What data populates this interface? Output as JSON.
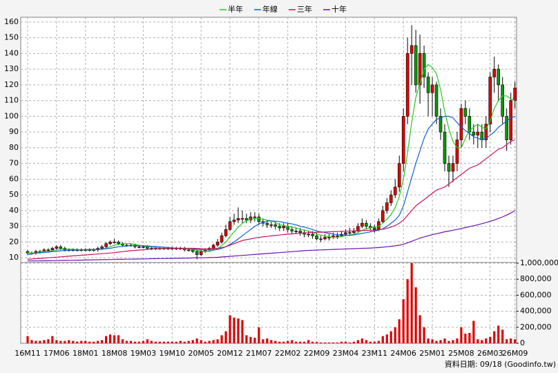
{
  "chart_data": {
    "type": "candlestick",
    "categories": [
      "16M11",
      null,
      null,
      null,
      null,
      null,
      null,
      "17M06",
      null,
      null,
      null,
      null,
      null,
      null,
      "18M01",
      null,
      null,
      null,
      null,
      null,
      null,
      "18M08",
      null,
      null,
      null,
      null,
      null,
      null,
      "19M03",
      null,
      null,
      null,
      null,
      null,
      null,
      "19M10",
      null,
      null,
      null,
      null,
      null,
      null,
      "20M05",
      null,
      null,
      null,
      null,
      null,
      null,
      "20M12",
      null,
      null,
      null,
      null,
      null,
      null,
      "21M07",
      null,
      null,
      null,
      null,
      null,
      null,
      "22M02",
      null,
      null,
      null,
      null,
      null,
      null,
      "22M09",
      null,
      null,
      null,
      null,
      null,
      null,
      "23M04",
      null,
      null,
      null,
      null,
      null,
      null,
      "23M11",
      null,
      null,
      null,
      null,
      null,
      null,
      "24M06",
      null,
      null,
      null,
      null,
      null,
      null,
      "25M01",
      null,
      null,
      null,
      null,
      null,
      null,
      "25M08",
      null,
      null,
      null,
      null,
      null,
      null,
      "26M03",
      null,
      null,
      null,
      null,
      null,
      "26M09"
    ],
    "open": [
      14,
      13,
      13,
      14,
      14,
      15,
      15,
      16,
      17,
      16,
      15,
      15,
      15,
      15,
      15,
      15,
      15,
      15,
      16,
      17,
      19,
      20,
      20,
      19,
      18,
      18,
      18,
      17,
      17,
      17,
      16,
      16,
      16,
      16,
      16,
      16,
      16,
      16,
      16,
      15,
      15,
      14,
      12,
      14,
      15,
      16,
      18,
      20,
      24,
      28,
      33,
      34,
      35,
      35,
      34,
      36,
      36,
      33,
      32,
      31,
      31,
      30,
      29,
      30,
      28,
      27,
      27,
      26,
      25,
      25,
      24,
      22,
      22,
      23,
      23,
      24,
      24,
      25,
      26,
      26,
      27,
      30,
      32,
      30,
      29,
      28,
      33,
      40,
      45,
      50,
      55,
      70,
      100,
      140,
      145,
      120,
      140,
      125,
      115,
      120,
      100,
      90,
      70,
      65,
      70,
      85,
      105,
      100,
      90,
      88,
      90,
      85,
      95,
      125,
      130,
      120,
      100,
      85,
      110
    ],
    "high": [
      15,
      14,
      15,
      15,
      16,
      16,
      17,
      18,
      18,
      17,
      16,
      16,
      16,
      16,
      16,
      16,
      16,
      17,
      18,
      20,
      21,
      22,
      21,
      20,
      19,
      19,
      19,
      18,
      18,
      18,
      17,
      17,
      17,
      17,
      17,
      17,
      17,
      17,
      17,
      16,
      16,
      15,
      15,
      16,
      17,
      19,
      22,
      26,
      31,
      36,
      38,
      42,
      40,
      38,
      39,
      39,
      38,
      35,
      34,
      33,
      33,
      32,
      32,
      32,
      30,
      29,
      29,
      28,
      27,
      27,
      26,
      24,
      25,
      25,
      26,
      26,
      27,
      28,
      29,
      29,
      32,
      35,
      34,
      32,
      31,
      35,
      43,
      48,
      53,
      60,
      75,
      105,
      150,
      158,
      155,
      152,
      145,
      128,
      125,
      122,
      105,
      95,
      75,
      75,
      90,
      108,
      110,
      105,
      95,
      95,
      95,
      100,
      128,
      138,
      133,
      125,
      105,
      115,
      122
    ],
    "low": [
      12,
      12,
      12,
      13,
      13,
      14,
      14,
      15,
      15,
      14,
      14,
      14,
      14,
      14,
      14,
      14,
      14,
      14,
      15,
      16,
      18,
      19,
      18,
      17,
      17,
      17,
      16,
      16,
      16,
      15,
      15,
      15,
      15,
      15,
      15,
      15,
      15,
      15,
      14,
      14,
      13,
      9,
      11,
      13,
      14,
      15,
      17,
      19,
      23,
      27,
      31,
      32,
      32,
      32,
      32,
      33,
      31,
      30,
      29,
      29,
      28,
      27,
      27,
      26,
      25,
      25,
      24,
      23,
      23,
      22,
      21,
      20,
      21,
      21,
      22,
      22,
      23,
      24,
      24,
      25,
      26,
      29,
      28,
      27,
      26,
      27,
      32,
      38,
      43,
      48,
      52,
      65,
      95,
      120,
      115,
      108,
      118,
      100,
      100,
      95,
      85,
      65,
      55,
      58,
      65,
      80,
      95,
      85,
      82,
      80,
      80,
      80,
      90,
      115,
      110,
      95,
      78,
      82,
      105
    ],
    "close": [
      13,
      13,
      14,
      14,
      15,
      15,
      16,
      17,
      16,
      15,
      15,
      15,
      15,
      15,
      15,
      15,
      15,
      16,
      17,
      19,
      20,
      20,
      19,
      18,
      18,
      18,
      17,
      17,
      17,
      16,
      16,
      16,
      16,
      16,
      16,
      16,
      16,
      16,
      15,
      15,
      14,
      12,
      14,
      15,
      16,
      18,
      20,
      24,
      28,
      33,
      34,
      35,
      35,
      34,
      36,
      36,
      33,
      32,
      31,
      31,
      30,
      29,
      30,
      28,
      27,
      27,
      26,
      25,
      25,
      24,
      22,
      22,
      23,
      23,
      24,
      24,
      25,
      26,
      26,
      27,
      30,
      32,
      30,
      29,
      28,
      33,
      40,
      45,
      50,
      55,
      70,
      100,
      140,
      145,
      120,
      140,
      125,
      115,
      120,
      100,
      90,
      70,
      65,
      70,
      85,
      105,
      100,
      90,
      88,
      90,
      85,
      95,
      125,
      130,
      120,
      100,
      85,
      110,
      118
    ],
    "up_color": "#e00000",
    "down_color": "#009a00",
    "series": [
      {
        "name": "半年",
        "color": "#22cc22",
        "values": [
          13,
          13,
          13,
          13.5,
          14,
          14,
          14.5,
          15,
          15.5,
          15.5,
          15.5,
          15.5,
          15.2,
          15,
          15,
          15,
          15,
          15.2,
          15.5,
          16,
          17,
          18,
          18.5,
          19,
          19,
          19,
          18.5,
          18,
          17.5,
          17.2,
          16.8,
          16.5,
          16.3,
          16,
          16,
          16,
          16,
          16,
          15.8,
          15.7,
          15.3,
          14.7,
          14.3,
          14,
          14,
          14.8,
          15.8,
          17.8,
          20,
          23.5,
          26.5,
          29.5,
          32,
          33.5,
          34.5,
          35,
          35,
          34.5,
          34,
          33.5,
          32.5,
          31,
          30.5,
          30,
          29.5,
          29,
          28,
          27.5,
          27,
          26.3,
          25,
          24.5,
          23.8,
          23.3,
          23,
          23,
          23.5,
          24,
          24.5,
          25,
          26,
          27.5,
          28.5,
          29,
          29.5,
          30,
          32,
          34.5,
          37.5,
          42,
          49,
          60,
          77,
          96,
          112,
          121,
          130,
          133,
          131,
          127,
          117,
          103,
          92,
          84,
          80,
          80,
          86,
          91,
          93,
          95,
          93,
          92,
          97,
          105,
          110,
          113,
          113,
          111,
          110
        ]
      },
      {
        "name": "年線",
        "color": "#1060d0",
        "values": [
          12,
          12.5,
          13,
          13,
          13.5,
          13.5,
          14,
          14,
          14.5,
          14.5,
          15,
          15,
          15,
          15,
          15.2,
          15.3,
          15.3,
          15.3,
          15.5,
          15.7,
          16,
          16.5,
          17,
          17.2,
          17.5,
          17.7,
          17.8,
          17.7,
          17.6,
          17.5,
          17.3,
          17.2,
          17,
          16.7,
          16.5,
          16.3,
          16.1,
          16,
          16,
          15.9,
          15.7,
          15.4,
          15.2,
          15,
          15,
          15,
          15.2,
          16,
          17,
          18.5,
          20,
          22,
          24,
          26,
          28,
          30,
          31.5,
          32.5,
          33.3,
          33.5,
          33.3,
          33,
          32.5,
          32,
          31.5,
          31,
          30,
          29.5,
          28.8,
          28,
          27,
          26.5,
          26,
          25.5,
          25,
          24.7,
          24.5,
          24.4,
          24.3,
          24.5,
          25,
          25.5,
          26,
          26.5,
          27,
          27.5,
          28.5,
          30,
          32,
          34,
          37,
          43,
          52,
          61,
          70,
          78,
          86,
          92,
          95,
          98,
          99,
          100,
          100,
          99,
          96,
          93,
          91,
          89,
          87,
          86,
          85,
          86,
          88,
          90,
          93,
          95,
          97,
          99,
          100
        ]
      },
      {
        "name": "三年",
        "color": "#cc1060",
        "values": [
          9,
          9.2,
          9.4,
          9.6,
          9.8,
          10,
          10.2,
          10.4,
          10.6,
          10.8,
          11,
          11.2,
          11.4,
          11.6,
          11.8,
          12,
          12.2,
          12.4,
          12.6,
          12.8,
          13,
          13.3,
          13.6,
          13.9,
          14.2,
          14.5,
          14.7,
          14.9,
          15.1,
          15.3,
          15.5,
          15.6,
          15.7,
          15.8,
          15.9,
          16,
          16,
          16,
          16,
          16,
          16,
          15.9,
          15.8,
          15.7,
          15.7,
          15.8,
          16,
          16.5,
          17,
          18,
          19,
          20,
          21,
          21.5,
          22,
          22.5,
          23,
          23.3,
          23.6,
          23.9,
          24.2,
          24.5,
          24.8,
          25,
          25.2,
          25.4,
          25.6,
          25.8,
          26,
          26.1,
          26.2,
          26.3,
          26.4,
          26.5,
          26.6,
          26.7,
          26.8,
          26.9,
          27,
          27.1,
          27.2,
          27.3,
          27.4,
          27.5,
          27.6,
          27.8,
          28.2,
          28.8,
          29.5,
          30.5,
          32,
          34,
          37,
          40,
          43,
          45,
          47,
          49,
          51,
          53,
          54,
          55,
          57,
          59,
          61,
          63,
          65,
          67,
          68,
          69,
          71,
          73,
          75,
          77,
          79,
          80,
          82,
          84,
          85
        ]
      },
      {
        "name": "十年",
        "color": "#6a10b0",
        "values": [
          8,
          8,
          8,
          8,
          8.1,
          8.1,
          8.2,
          8.2,
          8.3,
          8.3,
          8.4,
          8.4,
          8.5,
          8.5,
          8.6,
          8.6,
          8.7,
          8.7,
          8.8,
          8.8,
          8.9,
          8.9,
          9,
          9,
          9.1,
          9.1,
          9.2,
          9.2,
          9.3,
          9.3,
          9.4,
          9.4,
          9.5,
          9.5,
          9.6,
          9.6,
          9.7,
          9.7,
          9.8,
          9.8,
          9.9,
          9.9,
          10,
          10,
          10.1,
          10.2,
          10.3,
          10.5,
          10.7,
          10.9,
          11.1,
          11.3,
          11.5,
          11.7,
          11.9,
          12.1,
          12.3,
          12.5,
          12.7,
          12.9,
          13.1,
          13.3,
          13.5,
          13.7,
          13.9,
          14.1,
          14.3,
          14.5,
          14.7,
          14.8,
          14.9,
          15,
          15.1,
          15.2,
          15.3,
          15.4,
          15.5,
          15.6,
          15.7,
          15.8,
          15.9,
          16,
          16.1,
          16.2,
          16.3,
          16.5,
          16.7,
          17,
          17.3,
          17.6,
          18,
          18.6,
          19.5,
          20.5,
          21.5,
          22.5,
          23.3,
          24,
          24.7,
          25.3,
          25.9,
          26.5,
          27,
          27.5,
          28,
          28.6,
          29.2,
          29.8,
          30.4,
          31,
          31.7,
          32.4,
          33.2,
          34,
          35,
          36,
          37.2,
          38.5,
          40
        ]
      }
    ],
    "ylim": [
      7,
      163
    ],
    "yticks": [
      10,
      20,
      30,
      40,
      50,
      60,
      70,
      80,
      90,
      100,
      110,
      120,
      130,
      140,
      150,
      160
    ],
    "grid": true,
    "volume": {
      "color": "#dd0000",
      "values": [
        90000,
        40000,
        30000,
        30000,
        40000,
        50000,
        90000,
        40000,
        30000,
        30000,
        40000,
        30000,
        20000,
        30000,
        30000,
        20000,
        20000,
        30000,
        40000,
        90000,
        110000,
        100000,
        100000,
        50000,
        30000,
        30000,
        20000,
        20000,
        30000,
        50000,
        30000,
        20000,
        20000,
        20000,
        20000,
        20000,
        20000,
        30000,
        20000,
        30000,
        40000,
        60000,
        40000,
        20000,
        30000,
        40000,
        50000,
        100000,
        150000,
        350000,
        320000,
        310000,
        290000,
        100000,
        80000,
        70000,
        200000,
        50000,
        60000,
        40000,
        30000,
        20000,
        20000,
        30000,
        40000,
        20000,
        20000,
        20000,
        40000,
        20000,
        15000,
        10000,
        10000,
        10000,
        10000,
        10000,
        20000,
        20000,
        10000,
        20000,
        40000,
        60000,
        40000,
        20000,
        20000,
        30000,
        90000,
        110000,
        150000,
        200000,
        300000,
        550000,
        800000,
        1000000,
        700000,
        350000,
        200000,
        60000,
        50000,
        30000,
        40000,
        60000,
        30000,
        40000,
        60000,
        200000,
        120000,
        130000,
        280000,
        50000,
        40000,
        60000,
        80000,
        150000,
        220000,
        170000,
        50000,
        60000,
        50000
      ],
      "ylim": [
        0,
        1000000
      ],
      "yticks": [
        0,
        {
          "value": 200000,
          "label": "200,000"
        },
        {
          "value": 400000,
          "label": "400,000"
        },
        {
          "value": 600000,
          "label": "600,000"
        },
        {
          "value": 800000,
          "label": "800,000"
        },
        {
          "value": 1000000,
          "label": "1,000,000"
        }
      ]
    },
    "source": "資料日期: 09/18 (Goodinfo.tw)"
  }
}
